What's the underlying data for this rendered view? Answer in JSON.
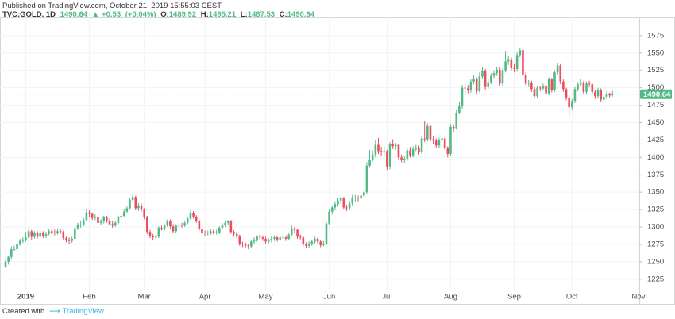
{
  "header": {
    "published": "Published on TradingView.com, October 21, 2019 15:55:03 CEST",
    "symbol": "TVC:GOLD, 1D",
    "change": "+0.53",
    "change_pct": "(+0.04%)",
    "ohlc_labels": [
      "O:",
      "H:",
      "L:",
      "C:"
    ]
  },
  "footer": {
    "created": "Created with",
    "brand": "TradingView"
  },
  "chart_data": {
    "type": "candlestick",
    "up_color": "#53b987",
    "down_color": "#eb4d5c",
    "grid": true,
    "ylim": [
      1210,
      1601
    ],
    "yticks": [
      1225,
      1250,
      1275,
      1300,
      1325,
      1350,
      1375,
      1400,
      1425,
      1450,
      1475,
      1500,
      1525,
      1550,
      1575
    ],
    "categories": [
      null,
      null,
      null,
      null,
      null,
      null,
      null,
      "2019",
      null,
      null,
      null,
      null,
      null,
      null,
      null,
      null,
      null,
      null,
      null,
      null,
      null,
      null,
      null,
      null,
      null,
      null,
      null,
      null,
      null,
      "Feb",
      null,
      null,
      null,
      null,
      null,
      null,
      null,
      null,
      null,
      null,
      null,
      null,
      null,
      null,
      null,
      null,
      null,
      null,
      "Mar",
      null,
      null,
      null,
      null,
      null,
      null,
      null,
      null,
      null,
      null,
      null,
      null,
      null,
      null,
      null,
      null,
      null,
      null,
      null,
      null,
      "Apr",
      null,
      null,
      null,
      null,
      null,
      null,
      null,
      null,
      null,
      null,
      null,
      null,
      null,
      null,
      null,
      null,
      null,
      null,
      null,
      null,
      "May",
      null,
      null,
      null,
      null,
      null,
      null,
      null,
      null,
      null,
      null,
      null,
      null,
      null,
      null,
      null,
      null,
      null,
      null,
      null,
      null,
      null,
      "Jun",
      null,
      null,
      null,
      null,
      null,
      null,
      null,
      null,
      null,
      null,
      null,
      null,
      null,
      null,
      null,
      null,
      null,
      null,
      null,
      "Jul",
      null,
      null,
      null,
      null,
      null,
      null,
      null,
      null,
      null,
      null,
      null,
      null,
      null,
      null,
      null,
      null,
      null,
      null,
      null,
      null,
      null,
      "Aug",
      null,
      null,
      null,
      null,
      null,
      null,
      null,
      null,
      null,
      null,
      null,
      null,
      null,
      null,
      null,
      null,
      null,
      null,
      null,
      null,
      null,
      "Sep",
      null,
      null,
      null,
      null,
      null,
      null,
      null,
      null,
      null,
      null,
      null,
      null,
      null,
      null,
      null,
      null,
      null,
      null,
      null,
      "Oct",
      null,
      null,
      null,
      null,
      null,
      null,
      null,
      null,
      null,
      null,
      null,
      null,
      null,
      null,
      null,
      null,
      null,
      null,
      null,
      null,
      null,
      null,
      "Nov"
    ],
    "ohlc": [
      [
        1243,
        1253,
        1241,
        1250
      ],
      [
        1250,
        1259,
        1246,
        1257
      ],
      [
        1257,
        1272,
        1254,
        1268
      ],
      [
        1268,
        1273,
        1266,
        1268
      ],
      [
        1268,
        1278,
        1263,
        1276
      ],
      [
        1276,
        1283,
        1273,
        1280
      ],
      [
        1280,
        1285,
        1277,
        1282
      ],
      [
        1282,
        1293,
        1279,
        1285
      ],
      [
        1285,
        1298,
        1283,
        1294
      ],
      [
        1294,
        1296,
        1282,
        1286
      ],
      [
        1286,
        1294,
        1283,
        1291
      ],
      [
        1291,
        1294,
        1283,
        1286
      ],
      [
        1286,
        1295,
        1284,
        1292
      ],
      [
        1292,
        1294,
        1284,
        1287
      ],
      [
        1287,
        1293,
        1284,
        1290
      ],
      [
        1290,
        1297,
        1288,
        1294
      ],
      [
        1294,
        1297,
        1289,
        1292
      ],
      [
        1292,
        1296,
        1288,
        1291
      ],
      [
        1291,
        1298,
        1289,
        1294
      ],
      [
        1294,
        1297,
        1290,
        1293
      ],
      [
        1293,
        1295,
        1281,
        1284
      ],
      [
        1284,
        1287,
        1278,
        1282
      ],
      [
        1282,
        1285,
        1276,
        1280
      ],
      [
        1280,
        1286,
        1277,
        1283
      ],
      [
        1283,
        1301,
        1281,
        1298
      ],
      [
        1298,
        1306,
        1296,
        1303
      ],
      [
        1303,
        1308,
        1299,
        1303
      ],
      [
        1303,
        1313,
        1301,
        1310
      ],
      [
        1310,
        1326,
        1308,
        1321
      ],
      [
        1321,
        1324,
        1314,
        1319
      ],
      [
        1319,
        1320,
        1310,
        1313
      ],
      [
        1313,
        1318,
        1310,
        1314
      ],
      [
        1314,
        1316,
        1303,
        1306
      ],
      [
        1306,
        1311,
        1303,
        1308
      ],
      [
        1308,
        1316,
        1305,
        1314
      ],
      [
        1314,
        1316,
        1306,
        1309
      ],
      [
        1309,
        1312,
        1302,
        1304
      ],
      [
        1304,
        1308,
        1299,
        1302
      ],
      [
        1302,
        1309,
        1300,
        1306
      ],
      [
        1306,
        1316,
        1304,
        1314
      ],
      [
        1314,
        1320,
        1311,
        1316
      ],
      [
        1316,
        1325,
        1314,
        1322
      ],
      [
        1322,
        1330,
        1320,
        1327
      ],
      [
        1327,
        1342,
        1325,
        1339
      ],
      [
        1339,
        1347,
        1336,
        1343
      ],
      [
        1343,
        1345,
        1324,
        1327
      ],
      [
        1327,
        1334,
        1323,
        1331
      ],
      [
        1331,
        1334,
        1322,
        1325
      ],
      [
        1325,
        1327,
        1311,
        1314
      ],
      [
        1314,
        1316,
        1290,
        1293
      ],
      [
        1293,
        1296,
        1284,
        1287
      ],
      [
        1287,
        1290,
        1281,
        1285
      ],
      [
        1285,
        1289,
        1282,
        1286
      ],
      [
        1286,
        1301,
        1284,
        1299
      ],
      [
        1299,
        1302,
        1295,
        1298
      ],
      [
        1298,
        1304,
        1295,
        1302
      ],
      [
        1302,
        1311,
        1300,
        1309
      ],
      [
        1309,
        1311,
        1298,
        1301
      ],
      [
        1301,
        1304,
        1291,
        1294
      ],
      [
        1294,
        1304,
        1292,
        1302
      ],
      [
        1302,
        1306,
        1299,
        1303
      ],
      [
        1303,
        1306,
        1299,
        1302
      ],
      [
        1302,
        1309,
        1300,
        1306
      ],
      [
        1306,
        1315,
        1304,
        1312
      ],
      [
        1312,
        1324,
        1310,
        1320
      ],
      [
        1320,
        1323,
        1312,
        1315
      ],
      [
        1315,
        1317,
        1306,
        1309
      ],
      [
        1309,
        1311,
        1294,
        1297
      ],
      [
        1297,
        1299,
        1288,
        1292
      ],
      [
        1292,
        1295,
        1287,
        1291
      ],
      [
        1291,
        1295,
        1288,
        1292
      ],
      [
        1292,
        1297,
        1289,
        1294
      ],
      [
        1294,
        1297,
        1289,
        1292
      ],
      [
        1292,
        1296,
        1289,
        1292
      ],
      [
        1292,
        1301,
        1290,
        1299
      ],
      [
        1299,
        1306,
        1297,
        1303
      ],
      [
        1303,
        1309,
        1300,
        1306
      ],
      [
        1306,
        1310,
        1303,
        1308
      ],
      [
        1308,
        1310,
        1290,
        1293
      ],
      [
        1293,
        1295,
        1286,
        1290
      ],
      [
        1290,
        1293,
        1284,
        1287
      ],
      [
        1287,
        1289,
        1273,
        1276
      ],
      [
        1276,
        1279,
        1271,
        1275
      ],
      [
        1275,
        1278,
        1270,
        1273
      ],
      [
        1273,
        1276,
        1268,
        1272
      ],
      [
        1272,
        1281,
        1270,
        1279
      ],
      [
        1279,
        1285,
        1276,
        1282
      ],
      [
        1282,
        1288,
        1279,
        1286
      ],
      [
        1286,
        1289,
        1282,
        1285
      ],
      [
        1285,
        1288,
        1280,
        1283
      ],
      [
        1283,
        1286,
        1276,
        1279
      ],
      [
        1279,
        1284,
        1275,
        1281
      ],
      [
        1281,
        1286,
        1278,
        1283
      ],
      [
        1283,
        1288,
        1280,
        1285
      ],
      [
        1285,
        1287,
        1279,
        1282
      ],
      [
        1282,
        1288,
        1280,
        1285
      ],
      [
        1285,
        1289,
        1282,
        1285
      ],
      [
        1285,
        1287,
        1280,
        1283
      ],
      [
        1283,
        1292,
        1281,
        1289
      ],
      [
        1289,
        1302,
        1287,
        1298
      ],
      [
        1298,
        1300,
        1292,
        1296
      ],
      [
        1296,
        1298,
        1283,
        1286
      ],
      [
        1286,
        1289,
        1282,
        1285
      ],
      [
        1285,
        1287,
        1272,
        1275
      ],
      [
        1275,
        1278,
        1269,
        1273
      ],
      [
        1273,
        1279,
        1270,
        1276
      ],
      [
        1276,
        1282,
        1273,
        1279
      ],
      [
        1279,
        1286,
        1276,
        1283
      ],
      [
        1283,
        1285,
        1276,
        1279
      ],
      [
        1279,
        1282,
        1271,
        1274
      ],
      [
        1274,
        1280,
        1272,
        1276
      ],
      [
        1276,
        1307,
        1274,
        1305
      ],
      [
        1305,
        1326,
        1303,
        1322
      ],
      [
        1322,
        1331,
        1318,
        1328
      ],
      [
        1328,
        1337,
        1324,
        1333
      ],
      [
        1333,
        1342,
        1330,
        1338
      ],
      [
        1338,
        1344,
        1333,
        1341
      ],
      [
        1341,
        1343,
        1325,
        1328
      ],
      [
        1328,
        1332,
        1323,
        1327
      ],
      [
        1327,
        1338,
        1324,
        1334
      ],
      [
        1334,
        1346,
        1331,
        1342
      ],
      [
        1342,
        1346,
        1337,
        1342
      ],
      [
        1342,
        1345,
        1337,
        1341
      ],
      [
        1341,
        1348,
        1338,
        1345
      ],
      [
        1345,
        1354,
        1342,
        1350
      ],
      [
        1350,
        1393,
        1348,
        1388
      ],
      [
        1388,
        1411,
        1385,
        1397
      ],
      [
        1397,
        1410,
        1394,
        1404
      ],
      [
        1404,
        1425,
        1400,
        1418
      ],
      [
        1418,
        1428,
        1405,
        1409
      ],
      [
        1409,
        1415,
        1402,
        1408
      ],
      [
        1408,
        1416,
        1403,
        1409
      ],
      [
        1409,
        1411,
        1382,
        1387
      ],
      [
        1387,
        1422,
        1383,
        1419
      ],
      [
        1419,
        1426,
        1412,
        1416
      ],
      [
        1416,
        1421,
        1411,
        1418
      ],
      [
        1418,
        1420,
        1397,
        1400
      ],
      [
        1400,
        1404,
        1393,
        1397
      ],
      [
        1397,
        1402,
        1392,
        1398
      ],
      [
        1398,
        1414,
        1395,
        1410
      ],
      [
        1410,
        1415,
        1400,
        1403
      ],
      [
        1403,
        1416,
        1400,
        1412
      ],
      [
        1412,
        1418,
        1409,
        1414
      ],
      [
        1414,
        1417,
        1404,
        1408
      ],
      [
        1408,
        1431,
        1405,
        1427
      ],
      [
        1427,
        1452,
        1422,
        1426
      ],
      [
        1426,
        1449,
        1423,
        1445
      ],
      [
        1445,
        1447,
        1423,
        1426
      ],
      [
        1426,
        1430,
        1419,
        1424
      ],
      [
        1424,
        1427,
        1413,
        1417
      ],
      [
        1417,
        1428,
        1414,
        1425
      ],
      [
        1425,
        1431,
        1421,
        1427
      ],
      [
        1427,
        1429,
        1410,
        1413
      ],
      [
        1413,
        1416,
        1400,
        1405
      ],
      [
        1405,
        1448,
        1402,
        1444
      ],
      [
        1444,
        1448,
        1437,
        1442
      ],
      [
        1442,
        1468,
        1440,
        1464
      ],
      [
        1464,
        1479,
        1462,
        1474
      ],
      [
        1474,
        1504,
        1470,
        1500
      ],
      [
        1500,
        1507,
        1490,
        1499
      ],
      [
        1499,
        1504,
        1492,
        1496
      ],
      [
        1496,
        1513,
        1493,
        1509
      ],
      [
        1509,
        1519,
        1505,
        1512
      ],
      [
        1512,
        1515,
        1491,
        1495
      ],
      [
        1495,
        1522,
        1493,
        1516
      ],
      [
        1516,
        1530,
        1512,
        1524
      ],
      [
        1524,
        1527,
        1497,
        1501
      ],
      [
        1501,
        1512,
        1498,
        1508
      ],
      [
        1508,
        1521,
        1505,
        1517
      ],
      [
        1517,
        1525,
        1514,
        1521
      ],
      [
        1521,
        1530,
        1517,
        1526
      ],
      [
        1526,
        1529,
        1503,
        1506
      ],
      [
        1506,
        1528,
        1503,
        1525
      ],
      [
        1525,
        1553,
        1522,
        1538
      ],
      [
        1538,
        1546,
        1533,
        1541
      ],
      [
        1541,
        1544,
        1524,
        1528
      ],
      [
        1528,
        1534,
        1522,
        1527
      ],
      [
        1527,
        1551,
        1523,
        1547
      ],
      [
        1547,
        1557,
        1544,
        1554
      ],
      [
        1554,
        1557,
        1515,
        1519
      ],
      [
        1519,
        1522,
        1503,
        1506
      ],
      [
        1506,
        1511,
        1501,
        1507
      ],
      [
        1507,
        1510,
        1494,
        1498
      ],
      [
        1498,
        1501,
        1485,
        1488
      ],
      [
        1488,
        1503,
        1485,
        1500
      ],
      [
        1500,
        1503,
        1495,
        1499
      ],
      [
        1499,
        1506,
        1496,
        1502
      ],
      [
        1502,
        1505,
        1489,
        1492
      ],
      [
        1492,
        1515,
        1489,
        1512
      ],
      [
        1512,
        1514,
        1493,
        1497
      ],
      [
        1497,
        1525,
        1494,
        1522
      ],
      [
        1522,
        1535,
        1518,
        1532
      ],
      [
        1532,
        1534,
        1505,
        1509
      ],
      [
        1509,
        1512,
        1494,
        1498
      ],
      [
        1498,
        1500,
        1482,
        1486
      ],
      [
        1486,
        1489,
        1459,
        1472
      ],
      [
        1472,
        1484,
        1469,
        1481
      ],
      [
        1481,
        1501,
        1478,
        1498
      ],
      [
        1498,
        1508,
        1495,
        1505
      ],
      [
        1505,
        1513,
        1502,
        1507
      ],
      [
        1507,
        1510,
        1491,
        1494
      ],
      [
        1494,
        1509,
        1491,
        1506
      ],
      [
        1506,
        1510,
        1501,
        1505
      ],
      [
        1505,
        1507,
        1490,
        1494
      ],
      [
        1494,
        1497,
        1484,
        1488
      ],
      [
        1488,
        1500,
        1485,
        1497
      ],
      [
        1497,
        1499,
        1480,
        1483
      ],
      [
        1483,
        1490,
        1478,
        1487
      ],
      [
        1487,
        1495,
        1484,
        1491
      ],
      [
        1491,
        1493,
        1486,
        1489
      ],
      [
        1489.92,
        1495.21,
        1487.53,
        1490.64
      ],
      null,
      null,
      null,
      null,
      null,
      null,
      null,
      null,
      null
    ]
  }
}
